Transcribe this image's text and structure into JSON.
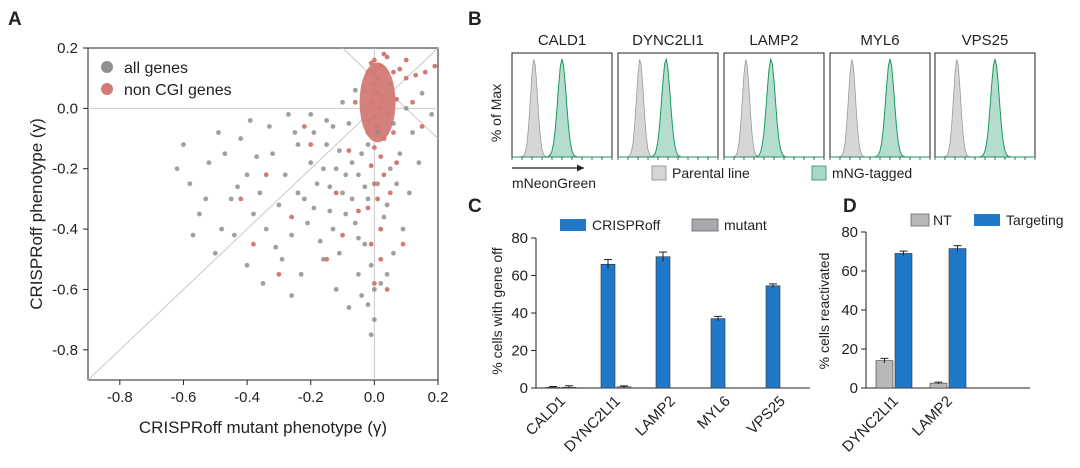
{
  "colors": {
    "all_genes": "#8f8f8f",
    "non_cgi": "#d27a74",
    "crisproff_bar": "#1f78c8",
    "mutant_bar": "#a9a9ad",
    "nt_bar": "#b8b8b8",
    "parental_fill": "#d6d6d8",
    "mng_fill": "#a8d7c6",
    "mng_line": "#1a9a5c"
  },
  "panels": {
    "a": "A",
    "b": "B",
    "c": "C",
    "d": "D"
  },
  "chart_data": [
    {
      "id": "A",
      "type": "scatter",
      "title": "",
      "xlabel": "CRISPRoff mutant phenotype (γ)",
      "ylabel": "CRISPRoff phenotype (γ)",
      "xlim": [
        -0.9,
        0.2
      ],
      "ylim": [
        -0.9,
        0.2
      ],
      "xticks": [
        "-0.8",
        "-0.6",
        "-0.4",
        "-0.2",
        "0.0",
        "0.2"
      ],
      "yticks": [
        "-0.8",
        "-0.6",
        "-0.4",
        "-0.2",
        "0.0",
        "0.2"
      ],
      "legend_position": "top-left",
      "series": [
        {
          "name": "all genes",
          "color": "#8f8f8f",
          "points": [
            [
              -0.32,
              -0.15
            ],
            [
              -0.28,
              -0.22
            ],
            [
              -0.25,
              -0.08
            ],
            [
              -0.22,
              -0.3
            ],
            [
              -0.2,
              -0.18
            ],
            [
              -0.18,
              -0.25
            ],
            [
              -0.15,
              -0.12
            ],
            [
              -0.14,
              -0.34
            ],
            [
              -0.12,
              -0.2
            ],
            [
              -0.1,
              -0.28
            ],
            [
              -0.08,
              -0.05
            ],
            [
              -0.06,
              -0.38
            ],
            [
              -0.05,
              -0.22
            ],
            [
              -0.04,
              -0.15
            ],
            [
              -0.03,
              -0.45
            ],
            [
              -0.02,
              -0.3
            ],
            [
              -0.01,
              -0.52
            ],
            [
              0.0,
              -0.6
            ],
            [
              0.01,
              -0.25
            ],
            [
              0.02,
              -0.4
            ],
            [
              0.03,
              -0.1
            ],
            [
              0.05,
              -0.2
            ],
            [
              0.06,
              -0.05
            ],
            [
              0.08,
              -0.15
            ],
            [
              0.1,
              0.0
            ],
            [
              -0.36,
              -0.28
            ],
            [
              -0.34,
              -0.4
            ],
            [
              -0.3,
              -0.32
            ],
            [
              -0.26,
              -0.42
            ],
            [
              -0.24,
              -0.12
            ],
            [
              -0.4,
              -0.22
            ],
            [
              -0.42,
              -0.1
            ],
            [
              -0.38,
              -0.35
            ],
            [
              -0.33,
              -0.06
            ],
            [
              -0.27,
              -0.02
            ],
            [
              -0.21,
              -0.38
            ],
            [
              -0.17,
              -0.44
            ],
            [
              -0.13,
              -0.06
            ],
            [
              -0.11,
              -0.48
            ],
            [
              -0.09,
              -0.35
            ],
            [
              -0.07,
              -0.18
            ],
            [
              -0.05,
              -0.55
            ],
            [
              0.04,
              -0.32
            ],
            [
              0.07,
              -0.25
            ],
            [
              0.12,
              -0.08
            ],
            [
              -0.45,
              -0.3
            ],
            [
              -0.47,
              -0.15
            ],
            [
              -0.52,
              -0.18
            ],
            [
              -0.44,
              -0.42
            ],
            [
              -0.29,
              -0.5
            ],
            [
              -0.23,
              -0.55
            ],
            [
              -0.19,
              -0.08
            ],
            [
              -0.16,
              -0.5
            ],
            [
              -0.02,
              -0.65
            ],
            [
              0.0,
              -0.7
            ],
            [
              -0.01,
              -0.75
            ],
            [
              0.02,
              -0.58
            ],
            [
              -0.04,
              -0.62
            ],
            [
              0.15,
              0.05
            ],
            [
              0.18,
              -0.02
            ],
            [
              -0.6,
              -0.12
            ],
            [
              -0.58,
              -0.25
            ],
            [
              -0.55,
              -0.35
            ],
            [
              -0.5,
              -0.48
            ],
            [
              -0.35,
              -0.58
            ],
            [
              -0.4,
              -0.52
            ],
            [
              -0.48,
              -0.4
            ],
            [
              -0.26,
              -0.62
            ],
            [
              -0.12,
              -0.6
            ],
            [
              -0.08,
              -0.66
            ],
            [
              -0.15,
              -0.04
            ],
            [
              -0.2,
              -0.02
            ],
            [
              -0.1,
              0.02
            ],
            [
              -0.06,
              0.06
            ],
            [
              0.09,
              -0.4
            ],
            [
              0.06,
              -0.48
            ],
            [
              0.04,
              -0.55
            ],
            [
              0.11,
              -0.28
            ],
            [
              0.14,
              -0.18
            ],
            [
              -0.31,
              -0.46
            ],
            [
              -0.37,
              -0.16
            ],
            [
              -0.43,
              -0.26
            ],
            [
              -0.53,
              -0.3
            ],
            [
              -0.57,
              -0.42
            ],
            [
              -0.62,
              -0.2
            ],
            [
              -0.49,
              -0.08
            ],
            [
              -0.39,
              -0.04
            ],
            [
              -0.14,
              -0.26
            ],
            [
              -0.11,
              -0.14
            ],
            [
              -0.09,
              -0.22
            ],
            [
              -0.03,
              -0.26
            ],
            [
              -0.02,
              -0.12
            ],
            [
              0.01,
              -0.08
            ],
            [
              0.03,
              -0.36
            ],
            [
              -0.24,
              -0.28
            ],
            [
              -0.19,
              -0.33
            ],
            [
              -0.16,
              -0.2
            ],
            [
              -0.13,
              -0.4
            ],
            [
              -0.07,
              -0.3
            ],
            [
              -0.05,
              -0.43
            ]
          ]
        },
        {
          "name": "non CGI genes",
          "color": "#d27a74",
          "points": [
            [
              0.0,
              0.08
            ],
            [
              0.01,
              0.05
            ],
            [
              -0.01,
              0.02
            ],
            [
              0.02,
              0.0
            ],
            [
              0.0,
              -0.03
            ],
            [
              0.01,
              -0.06
            ],
            [
              -0.02,
              -0.08
            ],
            [
              0.03,
              -0.1
            ],
            [
              0.0,
              -0.13
            ],
            [
              0.02,
              -0.16
            ],
            [
              -0.01,
              -0.19
            ],
            [
              0.01,
              0.1
            ],
            [
              0.03,
              0.04
            ],
            [
              -0.03,
              0.06
            ],
            [
              0.04,
              -0.02
            ],
            [
              -0.02,
              -0.04
            ],
            [
              0.0,
              0.12
            ],
            [
              0.02,
              0.14
            ],
            [
              -0.01,
              0.15
            ],
            [
              0.05,
              0.08
            ],
            [
              0.06,
              0.12
            ],
            [
              0.04,
              0.17
            ],
            [
              0.08,
              0.13
            ],
            [
              0.1,
              0.1
            ],
            [
              0.07,
              0.03
            ],
            [
              0.03,
              -0.22
            ],
            [
              0.0,
              -0.25
            ],
            [
              0.01,
              -0.3
            ],
            [
              -0.02,
              -0.33
            ],
            [
              0.02,
              -0.4
            ],
            [
              0.0,
              -0.58
            ],
            [
              0.02,
              -0.5
            ],
            [
              -0.01,
              -0.45
            ],
            [
              0.1,
              0.16
            ],
            [
              0.13,
              0.11
            ],
            [
              0.16,
              0.12
            ],
            [
              0.19,
              0.14
            ],
            [
              0.12,
              0.02
            ],
            [
              0.15,
              -0.06
            ],
            [
              -0.06,
              0.02
            ],
            [
              -0.12,
              -0.28
            ],
            [
              -0.2,
              -0.12
            ],
            [
              -0.26,
              -0.36
            ],
            [
              -0.38,
              -0.45
            ],
            [
              -0.3,
              -0.55
            ],
            [
              -0.15,
              -0.5
            ],
            [
              -0.08,
              -0.14
            ],
            [
              -0.05,
              -0.34
            ],
            [
              0.05,
              -0.28
            ],
            [
              0.07,
              -0.18
            ],
            [
              -0.34,
              -0.22
            ],
            [
              -0.42,
              -0.3
            ],
            [
              -0.22,
              -0.06
            ],
            [
              0.09,
              -0.45
            ],
            [
              0.04,
              -0.6
            ],
            [
              -0.1,
              -0.42
            ],
            [
              0.0,
              0.16
            ],
            [
              0.03,
              0.18
            ],
            [
              -0.02,
              0.12
            ],
            [
              0.06,
              -0.08
            ]
          ]
        }
      ]
    },
    {
      "id": "B",
      "type": "area",
      "title": "",
      "ylabel": "% of Max",
      "xlabel": "mNeonGreen",
      "panels": [
        "CALD1",
        "DYNC2LI1",
        "LAMP2",
        "MYL6",
        "VPS25"
      ],
      "series": [
        {
          "name": "Parental line",
          "peak_position": 0.22,
          "width": 0.05
        },
        {
          "name": "mNG-tagged",
          "peak_positions": [
            0.5,
            0.48,
            0.47,
            0.6,
            0.6
          ],
          "width": 0.06
        }
      ],
      "legend": [
        "Parental line",
        "mNG-tagged"
      ]
    },
    {
      "id": "C",
      "type": "bar",
      "title": "",
      "ylabel": "% cells with gene off",
      "xlabel": "",
      "ylim": [
        0,
        80
      ],
      "yticks": [
        "0",
        "20",
        "40",
        "60",
        "80"
      ],
      "categories": [
        "CALD1",
        "DYNC2LI1",
        "LAMP2",
        "MYL6",
        "VPS25"
      ],
      "series": [
        {
          "name": "CRISPRoff",
          "color": "#1f78c8",
          "values": [
            0.3,
            66,
            70,
            37,
            54.5
          ],
          "errors": [
            0.5,
            2.5,
            2.5,
            1.2,
            1.0
          ]
        },
        {
          "name": "mutant",
          "color": "#a9a9ad",
          "values": [
            0.4,
            0.6,
            0,
            0,
            0
          ],
          "errors": [
            0.8,
            0.5,
            0,
            0,
            0
          ]
        }
      ],
      "legend_position": "top"
    },
    {
      "id": "D",
      "type": "bar",
      "title": "",
      "ylabel": "% cells reactivated",
      "xlabel": "",
      "ylim": [
        0,
        80
      ],
      "yticks": [
        "0",
        "20",
        "40",
        "60",
        "80"
      ],
      "categories": [
        "DYNC2LI1",
        "LAMP2"
      ],
      "series": [
        {
          "name": "NT",
          "color": "#b8b8b8",
          "values": [
            14,
            2.5
          ],
          "errors": [
            1.2,
            0.5
          ]
        },
        {
          "name": "Targeting",
          "color": "#1f78c8",
          "values": [
            69,
            71.5
          ],
          "errors": [
            1.2,
            1.5
          ]
        }
      ],
      "legend_position": "top"
    }
  ]
}
